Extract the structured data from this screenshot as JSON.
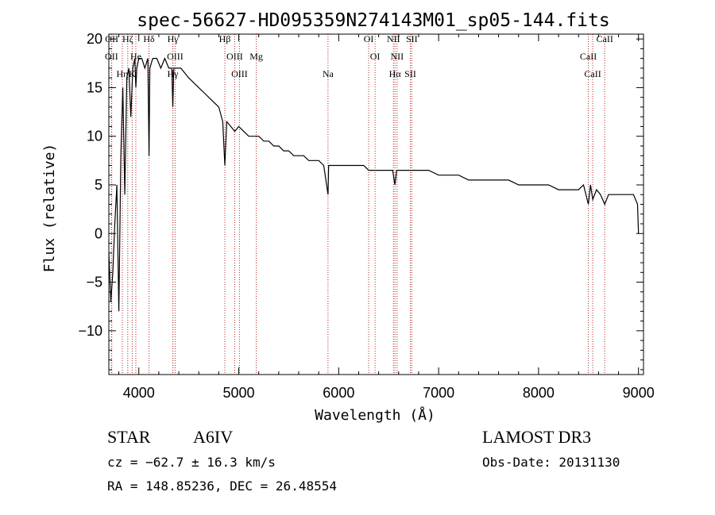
{
  "chart_data": {
    "type": "line",
    "title": "spec-56627-HD095359N274143M01_sp05-144.fits",
    "xlabel": "Wavelength (Å)",
    "ylabel": "Flux (relative)",
    "xlim": [
      3700,
      9050
    ],
    "ylim": [
      -14.5,
      20.5
    ],
    "xticks": [
      4000,
      5000,
      6000,
      7000,
      8000,
      9000
    ],
    "yticks": [
      -10,
      -5,
      0,
      5,
      10,
      15,
      20
    ],
    "grid": false,
    "line_color": "#000000",
    "marker_color": "#b22222",
    "series": [
      {
        "x": [
          3700,
          3720,
          3740,
          3760,
          3780,
          3800,
          3820,
          3840,
          3860,
          3880,
          3900,
          3920,
          3940,
          3960,
          3970,
          3980,
          4000,
          4030,
          4060,
          4090,
          4102,
          4110,
          4140,
          4180,
          4220,
          4260,
          4300,
          4330,
          4340,
          4350,
          4380,
          4420,
          4460,
          4500,
          4550,
          4600,
          4650,
          4700,
          4750,
          4800,
          4840,
          4861,
          4880,
          4920,
          4960,
          5000,
          5050,
          5100,
          5150,
          5200,
          5250,
          5300,
          5350,
          5400,
          5450,
          5500,
          5550,
          5600,
          5650,
          5700,
          5750,
          5800,
          5850,
          5893,
          5900,
          5950,
          6000,
          6050,
          6100,
          6150,
          6200,
          6250,
          6300,
          6350,
          6400,
          6450,
          6500,
          6540,
          6563,
          6580,
          6620,
          6700,
          6800,
          6900,
          7000,
          7100,
          7200,
          7300,
          7400,
          7500,
          7600,
          7700,
          7800,
          7900,
          8000,
          8100,
          8200,
          8300,
          8400,
          8450,
          8498,
          8520,
          8542,
          8580,
          8620,
          8662,
          8700,
          8750,
          8800,
          8850,
          8900,
          8950,
          8990,
          9000
        ],
        "y": [
          -2,
          -7,
          -4,
          1,
          5,
          -8,
          8,
          15,
          4,
          16,
          17,
          12,
          17,
          18,
          15,
          17,
          18,
          18,
          17,
          18,
          8,
          17,
          18,
          18,
          17,
          18,
          17,
          17,
          13,
          17,
          17,
          17,
          16.5,
          16,
          15.5,
          15,
          14.5,
          14,
          13.5,
          13,
          11.5,
          7,
          11.5,
          11,
          10.5,
          11,
          10.5,
          10,
          10,
          10,
          9.5,
          9.5,
          9,
          9,
          8.5,
          8.5,
          8,
          8,
          8,
          7.5,
          7.5,
          7.5,
          7,
          4,
          7,
          7,
          7,
          7,
          7,
          7,
          7,
          7,
          6.5,
          6.5,
          6.5,
          6.5,
          6.5,
          6.5,
          5,
          6.5,
          6.5,
          6.5,
          6.5,
          6.5,
          6,
          6,
          6,
          5.5,
          5.5,
          5.5,
          5.5,
          5.5,
          5,
          5,
          5,
          5,
          4.5,
          4.5,
          4.5,
          5,
          3,
          5,
          3.5,
          4.5,
          4,
          3,
          4,
          4,
          4,
          4,
          4,
          4,
          3,
          0
        ]
      }
    ],
    "line_markers": [
      {
        "name": "Hζ",
        "x": 3889
      },
      {
        "name": "OII",
        "x": 3727
      },
      {
        "name": "Hη",
        "x": 3835
      },
      {
        "name": "OII",
        "x": 3729
      },
      {
        "name": "He",
        "x": 3970
      },
      {
        "name": "K",
        "x": 3934
      },
      {
        "name": "Hδ",
        "x": 4102
      },
      {
        "name": "OIII",
        "x": 4363
      },
      {
        "name": "Hγ",
        "x": 4340
      },
      {
        "name": "Hγ",
        "x": 4341
      },
      {
        "name": "OIII",
        "x": 4959
      },
      {
        "name": "OIII",
        "x": 5007
      },
      {
        "name": "Hβ",
        "x": 4861
      },
      {
        "name": "Mg",
        "x": 5175
      },
      {
        "name": "Na",
        "x": 5893
      },
      {
        "name": "OI",
        "x": 6300
      },
      {
        "name": "OI",
        "x": 6364
      },
      {
        "name": "Hα",
        "x": 6563
      },
      {
        "name": "NII",
        "x": 6548
      },
      {
        "name": "NII",
        "x": 6584
      },
      {
        "name": "SII",
        "x": 6717
      },
      {
        "name": "SII",
        "x": 6731
      },
      {
        "name": "CaII",
        "x": 8498
      },
      {
        "name": "CaII",
        "x": 8542
      },
      {
        "name": "CaII",
        "x": 8662
      }
    ]
  },
  "info": {
    "object_class": "STAR",
    "subclass": "A6IV",
    "survey": "LAMOST DR3",
    "cz": "cz = −62.7 ± 16.3 km/s",
    "obs_date": "Obs-Date: 20131130",
    "coords": "RA = 148.85236, DEC =  26.48554"
  }
}
